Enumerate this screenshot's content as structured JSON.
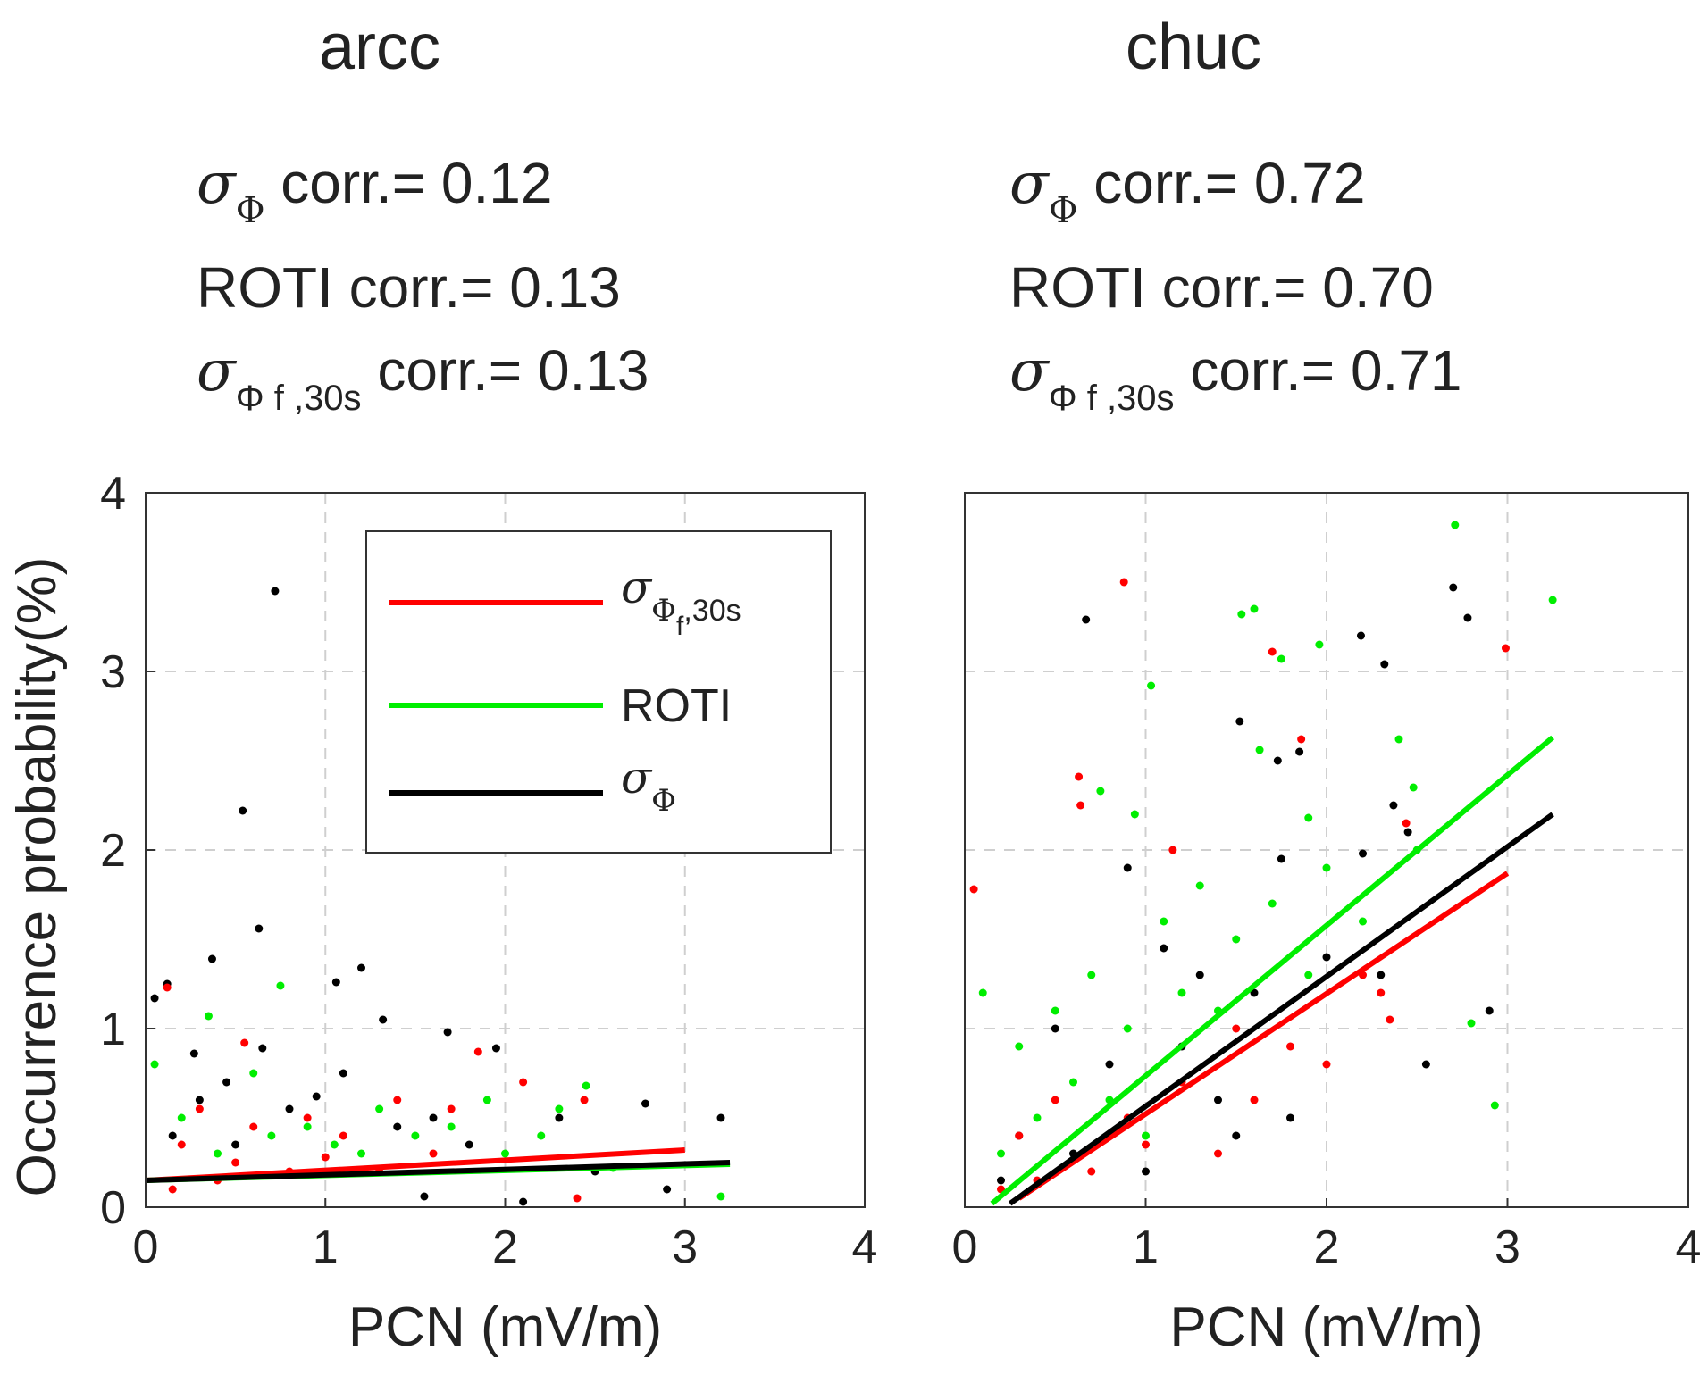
{
  "panels": [
    {
      "title": "arcc",
      "stats": [
        {
          "label_symbol": "σ",
          "label_sub": "Φ",
          "label_text": "corr.=",
          "value": "0.12"
        },
        {
          "label_symbol": "",
          "label_sub": "",
          "label_text": "ROTI corr.=",
          "value": "0.13"
        },
        {
          "label_symbol": "σ",
          "label_sub": "Φ f ,30s",
          "label_text": "corr.=",
          "value": "0.13"
        }
      ]
    },
    {
      "title": "chuc",
      "stats": [
        {
          "label_symbol": "σ",
          "label_sub": "Φ",
          "label_text": "corr.=",
          "value": "0.72"
        },
        {
          "label_symbol": "",
          "label_sub": "",
          "label_text": "ROTI corr.=",
          "value": "0.70"
        },
        {
          "label_symbol": "σ",
          "label_sub": "Φ f ,30s",
          "label_text": "corr.=",
          "value": "0.71"
        }
      ]
    }
  ],
  "colors": {
    "sigma_phi_f30s": "#ff0000",
    "roti": "#00ee00",
    "sigma_phi": "#000000"
  },
  "legend": {
    "entries": [
      {
        "symbol": "σ",
        "sub": "Φ",
        "sub2": "f",
        "tail": ",30s",
        "color": "#ff0000"
      },
      {
        "symbol": "",
        "sub": "",
        "sub2": "",
        "tail": "ROTI",
        "color": "#00ee00"
      },
      {
        "symbol": "σ",
        "sub": "Φ",
        "sub2": "",
        "tail": "",
        "color": "#000000"
      }
    ],
    "placement": "top-right of left panel"
  },
  "chart_data": [
    {
      "type": "scatter",
      "title": "arcc",
      "xlabel": "PCN (mV/m)",
      "ylabel": "Occurrence probability(%)",
      "xlim": [
        0,
        4
      ],
      "ylim": [
        0,
        4
      ],
      "xticks": [
        "0",
        "1",
        "2",
        "3",
        "4"
      ],
      "yticks": [
        "0",
        "1",
        "2",
        "3",
        "4"
      ],
      "grid": true,
      "fits": [
        {
          "series": "sigma_phi_f30s",
          "x": [
            0,
            3.0
          ],
          "y": [
            0.15,
            0.32
          ]
        },
        {
          "series": "roti",
          "x": [
            0,
            3.25
          ],
          "y": [
            0.15,
            0.24
          ]
        },
        {
          "series": "sigma_phi",
          "x": [
            0,
            3.25
          ],
          "y": [
            0.15,
            0.25
          ]
        }
      ],
      "scatter": {
        "sigma_phi": [
          [
            0.72,
            3.45
          ],
          [
            0.54,
            2.22
          ],
          [
            0.63,
            1.56
          ],
          [
            0.37,
            1.39
          ],
          [
            0.12,
            1.25
          ],
          [
            1.06,
            1.26
          ],
          [
            1.2,
            1.34
          ],
          [
            0.05,
            1.17
          ],
          [
            1.32,
            1.05
          ],
          [
            1.68,
            0.98
          ],
          [
            1.95,
            0.89
          ],
          [
            0.27,
            0.86
          ],
          [
            0.65,
            0.89
          ],
          [
            2.78,
            0.58
          ],
          [
            3.2,
            0.5
          ],
          [
            1.1,
            0.75
          ],
          [
            0.3,
            0.6
          ],
          [
            0.8,
            0.55
          ],
          [
            0.95,
            0.62
          ],
          [
            1.4,
            0.45
          ],
          [
            1.6,
            0.5
          ],
          [
            2.3,
            0.5
          ],
          [
            0.45,
            0.7
          ],
          [
            0.15,
            0.4
          ],
          [
            0.5,
            0.35
          ],
          [
            1.55,
            0.06
          ],
          [
            2.1,
            0.03
          ],
          [
            2.9,
            0.1
          ],
          [
            1.8,
            0.35
          ],
          [
            2.5,
            0.2
          ]
        ],
        "roti": [
          [
            0.75,
            1.24
          ],
          [
            0.35,
            1.07
          ],
          [
            0.05,
            0.8
          ],
          [
            0.6,
            0.75
          ],
          [
            2.3,
            0.55
          ],
          [
            2.45,
            0.68
          ],
          [
            1.9,
            0.6
          ],
          [
            1.3,
            0.55
          ],
          [
            0.2,
            0.5
          ],
          [
            0.9,
            0.45
          ],
          [
            1.5,
            0.4
          ],
          [
            2.0,
            0.3
          ],
          [
            2.6,
            0.22
          ],
          [
            3.2,
            0.06
          ],
          [
            1.2,
            0.3
          ],
          [
            0.4,
            0.3
          ],
          [
            0.7,
            0.4
          ],
          [
            1.05,
            0.35
          ],
          [
            1.7,
            0.45
          ],
          [
            2.2,
            0.4
          ]
        ],
        "sigma_phi_f30s": [
          [
            0.12,
            1.23
          ],
          [
            0.55,
            0.92
          ],
          [
            1.85,
            0.87
          ],
          [
            2.44,
            0.6
          ],
          [
            2.1,
            0.7
          ],
          [
            1.7,
            0.55
          ],
          [
            0.9,
            0.5
          ],
          [
            0.3,
            0.55
          ],
          [
            1.4,
            0.6
          ],
          [
            0.6,
            0.45
          ],
          [
            1.1,
            0.4
          ],
          [
            0.2,
            0.35
          ],
          [
            1.6,
            0.3
          ],
          [
            0.8,
            0.2
          ],
          [
            0.4,
            0.15
          ],
          [
            2.4,
            0.05
          ],
          [
            1.3,
            0.2
          ],
          [
            0.15,
            0.1
          ],
          [
            1.0,
            0.28
          ],
          [
            0.5,
            0.25
          ]
        ]
      }
    },
    {
      "type": "scatter",
      "title": "chuc",
      "xlabel": "PCN (mV/m)",
      "ylabel": "",
      "xlim": [
        0,
        4
      ],
      "ylim": [
        0,
        4
      ],
      "xticks": [
        "0",
        "1",
        "2",
        "3",
        "4"
      ],
      "yticks": [],
      "grid": true,
      "fits": [
        {
          "series": "sigma_phi_f30s",
          "x": [
            0.3,
            3.0
          ],
          "y": [
            0.05,
            1.87
          ]
        },
        {
          "series": "roti",
          "x": [
            0.15,
            3.25
          ],
          "y": [
            0.02,
            2.63
          ]
        },
        {
          "series": "sigma_phi",
          "x": [
            0.25,
            3.25
          ],
          "y": [
            0.02,
            2.2
          ]
        }
      ],
      "scatter": {
        "sigma_phi": [
          [
            2.7,
            3.47
          ],
          [
            2.78,
            3.3
          ],
          [
            0.67,
            3.29
          ],
          [
            2.19,
            3.2
          ],
          [
            2.32,
            3.04
          ],
          [
            1.52,
            2.72
          ],
          [
            1.85,
            2.55
          ],
          [
            1.73,
            2.5
          ],
          [
            2.37,
            2.25
          ],
          [
            2.45,
            2.1
          ],
          [
            0.9,
            1.9
          ],
          [
            1.75,
            1.95
          ],
          [
            2.2,
            1.98
          ],
          [
            1.1,
            1.45
          ],
          [
            1.3,
            1.3
          ],
          [
            0.5,
            1.0
          ],
          [
            1.6,
            1.2
          ],
          [
            2.0,
            1.4
          ],
          [
            2.3,
            1.3
          ],
          [
            2.55,
            0.8
          ],
          [
            2.9,
            1.1
          ],
          [
            1.4,
            0.6
          ],
          [
            1.8,
            0.5
          ],
          [
            0.3,
            0.4
          ],
          [
            0.8,
            0.8
          ],
          [
            1.2,
            0.9
          ],
          [
            0.6,
            0.3
          ],
          [
            1.0,
            0.2
          ],
          [
            1.5,
            0.4
          ],
          [
            0.2,
            0.15
          ]
        ],
        "roti": [
          [
            2.71,
            3.82
          ],
          [
            3.25,
            3.4
          ],
          [
            1.6,
            3.35
          ],
          [
            1.53,
            3.32
          ],
          [
            1.96,
            3.15
          ],
          [
            1.75,
            3.07
          ],
          [
            1.03,
            2.92
          ],
          [
            2.4,
            2.62
          ],
          [
            1.63,
            2.56
          ],
          [
            2.48,
            2.35
          ],
          [
            0.75,
            2.33
          ],
          [
            0.94,
            2.2
          ],
          [
            1.9,
            2.18
          ],
          [
            2.8,
            1.03
          ],
          [
            2.93,
            0.57
          ],
          [
            0.1,
            1.2
          ],
          [
            0.3,
            0.9
          ],
          [
            0.5,
            1.1
          ],
          [
            0.7,
            1.3
          ],
          [
            0.9,
            1.0
          ],
          [
            1.1,
            1.6
          ],
          [
            1.3,
            1.8
          ],
          [
            1.5,
            1.5
          ],
          [
            1.7,
            1.7
          ],
          [
            2.0,
            1.9
          ],
          [
            2.2,
            1.6
          ],
          [
            0.4,
            0.5
          ],
          [
            0.6,
            0.7
          ],
          [
            1.2,
            1.2
          ],
          [
            1.9,
            1.3
          ],
          [
            1.4,
            1.1
          ],
          [
            0.2,
            0.3
          ],
          [
            2.5,
            2.0
          ],
          [
            1.0,
            0.4
          ],
          [
            0.8,
            0.6
          ]
        ],
        "sigma_phi_f30s": [
          [
            0.88,
            3.5
          ],
          [
            1.7,
            3.11
          ],
          [
            2.99,
            3.13
          ],
          [
            0.63,
            2.41
          ],
          [
            0.64,
            2.25
          ],
          [
            1.86,
            2.62
          ],
          [
            2.44,
            2.15
          ],
          [
            0.05,
            1.78
          ],
          [
            1.15,
            2.0
          ],
          [
            2.2,
            1.3
          ],
          [
            2.35,
            1.05
          ],
          [
            1.5,
            1.0
          ],
          [
            1.8,
            0.9
          ],
          [
            0.3,
            0.4
          ],
          [
            0.5,
            0.6
          ],
          [
            0.7,
            0.2
          ],
          [
            0.9,
            0.5
          ],
          [
            1.2,
            0.7
          ],
          [
            1.4,
            0.3
          ],
          [
            1.6,
            0.6
          ],
          [
            2.0,
            0.8
          ],
          [
            0.2,
            0.1
          ],
          [
            0.4,
            0.15
          ],
          [
            1.0,
            0.35
          ],
          [
            2.3,
            1.2
          ]
        ]
      }
    }
  ]
}
